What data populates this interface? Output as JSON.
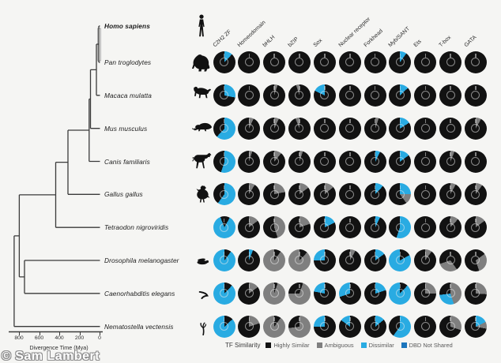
{
  "figure": {
    "watermark": "© Sam Lambert",
    "background": "#f5f5f3"
  },
  "tree": {
    "axis": {
      "title": "Divergence Time (Mya)",
      "ticks": [
        {
          "label": "800",
          "mya": 800
        },
        {
          "label": "600",
          "mya": 600
        },
        {
          "label": "400",
          "mya": 400
        },
        {
          "label": "200",
          "mya": 200
        },
        {
          "label": "0",
          "mya": 0
        }
      ]
    },
    "species": [
      {
        "name": "Homo sapiens",
        "bold": true,
        "icon": "human-icon"
      },
      {
        "name": "Pan troglodytes",
        "bold": false,
        "icon": "chimpanzee-icon"
      },
      {
        "name": "Macaca mulatta",
        "bold": false,
        "icon": "macaque-icon"
      },
      {
        "name": "Mus musculus",
        "bold": false,
        "icon": "mouse-icon"
      },
      {
        "name": "Canis familiaris",
        "bold": false,
        "icon": "dog-icon"
      },
      {
        "name": "Gallus gallus",
        "bold": false,
        "icon": "rooster-icon"
      },
      {
        "name": "Tetraodon nigroviridis",
        "bold": false,
        "icon": null
      },
      {
        "name": "Drosophila melanogaster",
        "bold": false,
        "icon": "fly-icon"
      },
      {
        "name": "Caenorhabditis elegans",
        "bold": false,
        "icon": "worm-icon"
      },
      {
        "name": "Nematostella vectensis",
        "bold": false,
        "icon": "sea-anemone-icon"
      }
    ]
  },
  "matrix": {
    "legend": {
      "title": "TF Similarity",
      "items": [
        {
          "key": "K",
          "label": "Highly Similar",
          "color": "#121212"
        },
        {
          "key": "G",
          "label": "Ambiguous",
          "color": "#7f7f7f"
        },
        {
          "key": "C",
          "label": "Dissimilar",
          "color": "#29ABE2"
        },
        {
          "key": "B",
          "label": "DBD Not Shared",
          "color": "#1B75BC"
        }
      ]
    }
  },
  "chart_data": {
    "type": "pie",
    "title": "Per-species donut charts of transcription-factor DNA-binding-domain similarity to Homo sapiens",
    "legend_position": "bottom",
    "segment_keys": {
      "K": "Highly Similar",
      "G": "Ambiguous",
      "C": "Dissimilar",
      "B": "DBD Not Shared"
    },
    "columns": [
      "C2H2 ZF",
      "Homeodomain",
      "bHLH",
      "bZIP",
      "Sox",
      "Nuclear receptor",
      "Forkhead",
      "Myb/SANT",
      "Ets",
      "T-box",
      "GATA"
    ],
    "series": [
      {
        "name": "Pan troglodytes",
        "donuts": [
          [
            [
              "C",
              0.12
            ],
            [
              "K",
              0.88
            ]
          ],
          [
            [
              "K",
              1
            ]
          ],
          [
            [
              "K",
              1
            ]
          ],
          [
            [
              "K",
              1
            ]
          ],
          [
            [
              "K",
              1
            ]
          ],
          [
            [
              "K",
              1
            ]
          ],
          [
            [
              "K",
              1
            ]
          ],
          [
            [
              "C",
              0.1
            ],
            [
              "K",
              0.9
            ]
          ],
          [
            [
              "K",
              1
            ]
          ],
          [
            [
              "K",
              1
            ]
          ],
          [
            [
              "K",
              1
            ]
          ]
        ]
      },
      {
        "name": "Macaca mulatta",
        "donuts": [
          [
            [
              "C",
              0.28
            ],
            [
              "K",
              0.72
            ]
          ],
          [
            [
              "K",
              1
            ]
          ],
          [
            [
              "G",
              0.05
            ],
            [
              "K",
              0.95
            ]
          ],
          [
            [
              "K",
              0.95
            ],
            [
              "G",
              0.05
            ]
          ],
          [
            [
              "K",
              0.82
            ],
            [
              "C",
              0.18
            ]
          ],
          [
            [
              "K",
              1
            ]
          ],
          [
            [
              "K",
              1
            ]
          ],
          [
            [
              "C",
              0.13
            ],
            [
              "K",
              0.87
            ]
          ],
          [
            [
              "K",
              1
            ]
          ],
          [
            [
              "K",
              1
            ]
          ],
          [
            [
              "K",
              1
            ]
          ]
        ]
      },
      {
        "name": "Mus musculus",
        "donuts": [
          [
            [
              "C",
              0.62
            ],
            [
              "K",
              0.38
            ]
          ],
          [
            [
              "G",
              0.07
            ],
            [
              "K",
              0.93
            ]
          ],
          [
            [
              "G",
              0.07
            ],
            [
              "K",
              0.93
            ]
          ],
          [
            [
              "K",
              0.94
            ],
            [
              "G",
              0.06
            ]
          ],
          [
            [
              "K",
              1
            ]
          ],
          [
            [
              "K",
              1
            ]
          ],
          [
            [
              "G",
              0.05
            ],
            [
              "K",
              0.95
            ]
          ],
          [
            [
              "C",
              0.16
            ],
            [
              "K",
              0.84
            ]
          ],
          [
            [
              "K",
              1
            ]
          ],
          [
            [
              "K",
              1
            ]
          ],
          [
            [
              "G",
              0.08
            ],
            [
              "K",
              0.92
            ]
          ]
        ]
      },
      {
        "name": "Canis familiaris",
        "donuts": [
          [
            [
              "C",
              0.55
            ],
            [
              "K",
              0.45
            ]
          ],
          [
            [
              "G",
              0.05
            ],
            [
              "K",
              0.95
            ]
          ],
          [
            [
              "G",
              0.11
            ],
            [
              "K",
              0.89
            ]
          ],
          [
            [
              "G",
              0.05
            ],
            [
              "K",
              0.95
            ]
          ],
          [
            [
              "K",
              1
            ]
          ],
          [
            [
              "K",
              1
            ]
          ],
          [
            [
              "C",
              0.07
            ],
            [
              "K",
              0.93
            ]
          ],
          [
            [
              "C",
              0.15
            ],
            [
              "K",
              0.85
            ]
          ],
          [
            [
              "K",
              1
            ]
          ],
          [
            [
              "G",
              0.06
            ],
            [
              "K",
              0.94
            ]
          ],
          [
            [
              "K",
              1
            ]
          ]
        ]
      },
      {
        "name": "Gallus gallus",
        "donuts": [
          [
            [
              "C",
              0.6
            ],
            [
              "K",
              0.4
            ]
          ],
          [
            [
              "G",
              0.09
            ],
            [
              "K",
              0.91
            ]
          ],
          [
            [
              "G",
              0.22
            ],
            [
              "K",
              0.78
            ]
          ],
          [
            [
              "G",
              0.15
            ],
            [
              "K",
              0.85
            ]
          ],
          [
            [
              "G",
              0.14
            ],
            [
              "K",
              0.86
            ]
          ],
          [
            [
              "K",
              1
            ]
          ],
          [
            [
              "C",
              0.12
            ],
            [
              "K",
              0.88
            ]
          ],
          [
            [
              "C",
              0.25
            ],
            [
              "G",
              0.15
            ],
            [
              "K",
              0.6
            ]
          ],
          [
            [
              "K",
              1
            ]
          ],
          [
            [
              "G",
              0.08
            ],
            [
              "K",
              0.92
            ]
          ],
          [
            [
              "G",
              0.1
            ],
            [
              "K",
              0.9
            ]
          ]
        ]
      },
      {
        "name": "Tetraodon nigroviridis",
        "donuts": [
          [
            [
              "K",
              0.08
            ],
            [
              "C",
              0.86
            ],
            [
              "K",
              0.06
            ]
          ],
          [
            [
              "G",
              0.15
            ],
            [
              "K",
              0.85
            ]
          ],
          [
            [
              "G",
              0.45
            ],
            [
              "K",
              0.55
            ]
          ],
          [
            [
              "G",
              0.2
            ],
            [
              "K",
              0.8
            ]
          ],
          [
            [
              "C",
              0.18
            ],
            [
              "K",
              0.82
            ]
          ],
          [
            [
              "K",
              1
            ]
          ],
          [
            [
              "C",
              0.07
            ],
            [
              "K",
              0.93
            ]
          ],
          [
            [
              "C",
              0.55
            ],
            [
              "K",
              0.45
            ]
          ],
          [
            [
              "K",
              1
            ]
          ],
          [
            [
              "G",
              0.12
            ],
            [
              "K",
              0.88
            ]
          ],
          [
            [
              "G",
              0.15
            ],
            [
              "K",
              0.85
            ]
          ]
        ]
      },
      {
        "name": "Drosophila melanogaster",
        "donuts": [
          [
            [
              "K",
              0.1
            ],
            [
              "C",
              0.9
            ]
          ],
          [
            [
              "C",
              0.06
            ],
            [
              "K",
              0.94
            ]
          ],
          [
            [
              "K",
              0.1
            ],
            [
              "G",
              0.9
            ]
          ],
          [
            [
              "K",
              0.12
            ],
            [
              "G",
              0.88
            ]
          ],
          [
            [
              "K",
              0.75
            ],
            [
              "C",
              0.25
            ]
          ],
          [
            [
              "G",
              0.08
            ],
            [
              "K",
              0.92
            ]
          ],
          [
            [
              "C",
              0.15
            ],
            [
              "K",
              0.85
            ]
          ],
          [
            [
              "K",
              0.17
            ],
            [
              "C",
              0.83
            ]
          ],
          [
            [
              "G",
              0.1
            ],
            [
              "K",
              0.9
            ]
          ],
          [
            [
              "K",
              0.4
            ],
            [
              "G",
              0.3
            ],
            [
              "K",
              0.3
            ]
          ],
          [
            [
              "K",
              0.15
            ],
            [
              "G",
              0.3
            ],
            [
              "K",
              0.55
            ]
          ]
        ]
      },
      {
        "name": "Caenorhabditis elegans",
        "donuts": [
          [
            [
              "K",
              0.12
            ],
            [
              "C",
              0.88
            ]
          ],
          [
            [
              "G",
              0.15
            ],
            [
              "K",
              0.85
            ]
          ],
          [
            [
              "K",
              0.05
            ],
            [
              "G",
              0.95
            ]
          ],
          [
            [
              "K",
              0.05
            ],
            [
              "G",
              0.7
            ],
            [
              "K",
              0.25
            ]
          ],
          [
            [
              "K",
              0.78
            ],
            [
              "C",
              0.22
            ]
          ],
          [
            [
              "K",
              0.7
            ],
            [
              "C",
              0.3
            ]
          ],
          [
            [
              "C",
              0.2
            ],
            [
              "K",
              0.8
            ]
          ],
          [
            [
              "K",
              0.12
            ],
            [
              "C",
              0.88
            ]
          ],
          [
            [
              "G",
              0.25
            ],
            [
              "K",
              0.75
            ]
          ],
          [
            [
              "G",
              0.45
            ],
            [
              "C",
              0.28
            ],
            [
              "K",
              0.27
            ]
          ],
          [
            [
              "G",
              0.26
            ],
            [
              "K",
              0.74
            ]
          ]
        ]
      },
      {
        "name": "Nematostella vectensis",
        "donuts": [
          [
            [
              "K",
              0.13
            ],
            [
              "C",
              0.87
            ]
          ],
          [
            [
              "G",
              0.2
            ],
            [
              "K",
              0.8
            ]
          ],
          [
            [
              "K",
              0.1
            ],
            [
              "G",
              0.9
            ]
          ],
          [
            [
              "G",
              0.73
            ],
            [
              "K",
              0.27
            ]
          ],
          [
            [
              "K",
              0.75
            ],
            [
              "C",
              0.25
            ]
          ],
          [
            [
              "K",
              0.85
            ],
            [
              "C",
              0.15
            ]
          ],
          [
            [
              "C",
              0.14
            ],
            [
              "K",
              0.86
            ]
          ],
          [
            [
              "C",
              0.6
            ],
            [
              "K",
              0.4
            ]
          ],
          [
            [
              "K",
              1
            ]
          ],
          [
            [
              "G",
              0.3
            ],
            [
              "K",
              0.7
            ]
          ],
          [
            [
              "C",
              0.18
            ],
            [
              "G",
              0.1
            ],
            [
              "K",
              0.72
            ]
          ]
        ]
      }
    ]
  }
}
